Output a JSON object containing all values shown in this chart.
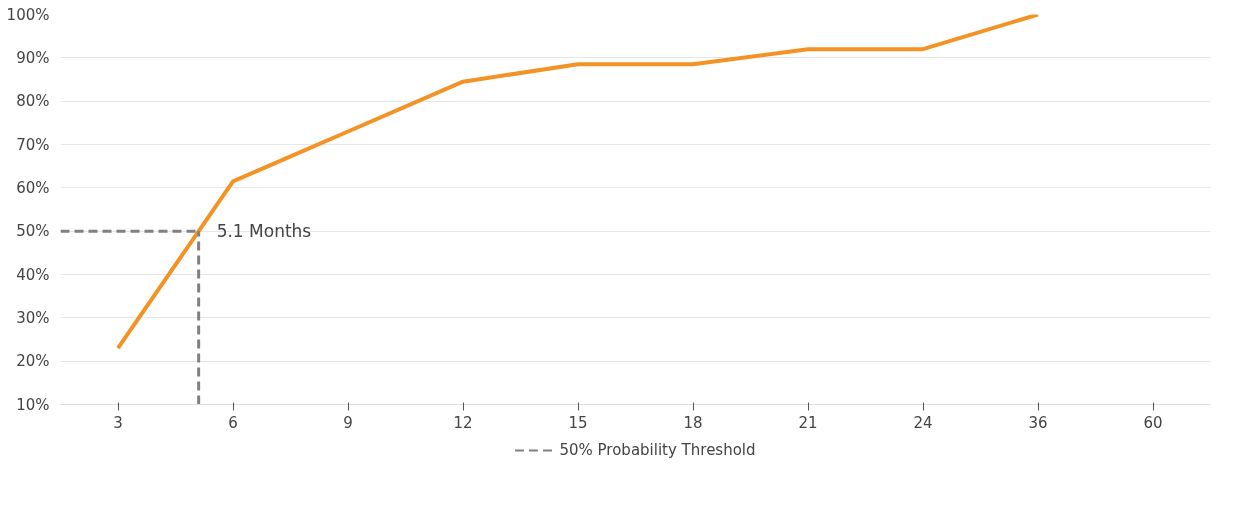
{
  "chart_data": {
    "type": "line",
    "categories": [
      "3",
      "6",
      "9",
      "12",
      "15",
      "18",
      "21",
      "24",
      "36",
      "60"
    ],
    "series": [
      {
        "color": "#f39325",
        "values": [
          23,
          61.5,
          73,
          84.5,
          88.5,
          88.5,
          92,
          92,
          100,
          null
        ]
      }
    ],
    "ylim": [
      10,
      100
    ],
    "yticks": [
      {
        "value": 10,
        "label": "10%"
      },
      {
        "value": 20,
        "label": "20%"
      },
      {
        "value": 30,
        "label": "30%"
      },
      {
        "value": 40,
        "label": "40%"
      },
      {
        "value": 50,
        "label": "50%"
      },
      {
        "value": 60,
        "label": "60%"
      },
      {
        "value": 70,
        "label": "70%"
      },
      {
        "value": 80,
        "label": "80%"
      },
      {
        "value": 90,
        "label": "90%"
      },
      {
        "value": 100,
        "label": "100%"
      }
    ],
    "ref_lines": [
      {
        "axis": "y",
        "value": 50,
        "label": "50% Probability Threshold",
        "color": "#808080",
        "line_style": "dashed"
      }
    ],
    "annotations": [
      "5.1 Months"
    ],
    "grid": "y",
    "legend": "bottom",
    "marker": "none",
    "line_style": "solid"
  }
}
